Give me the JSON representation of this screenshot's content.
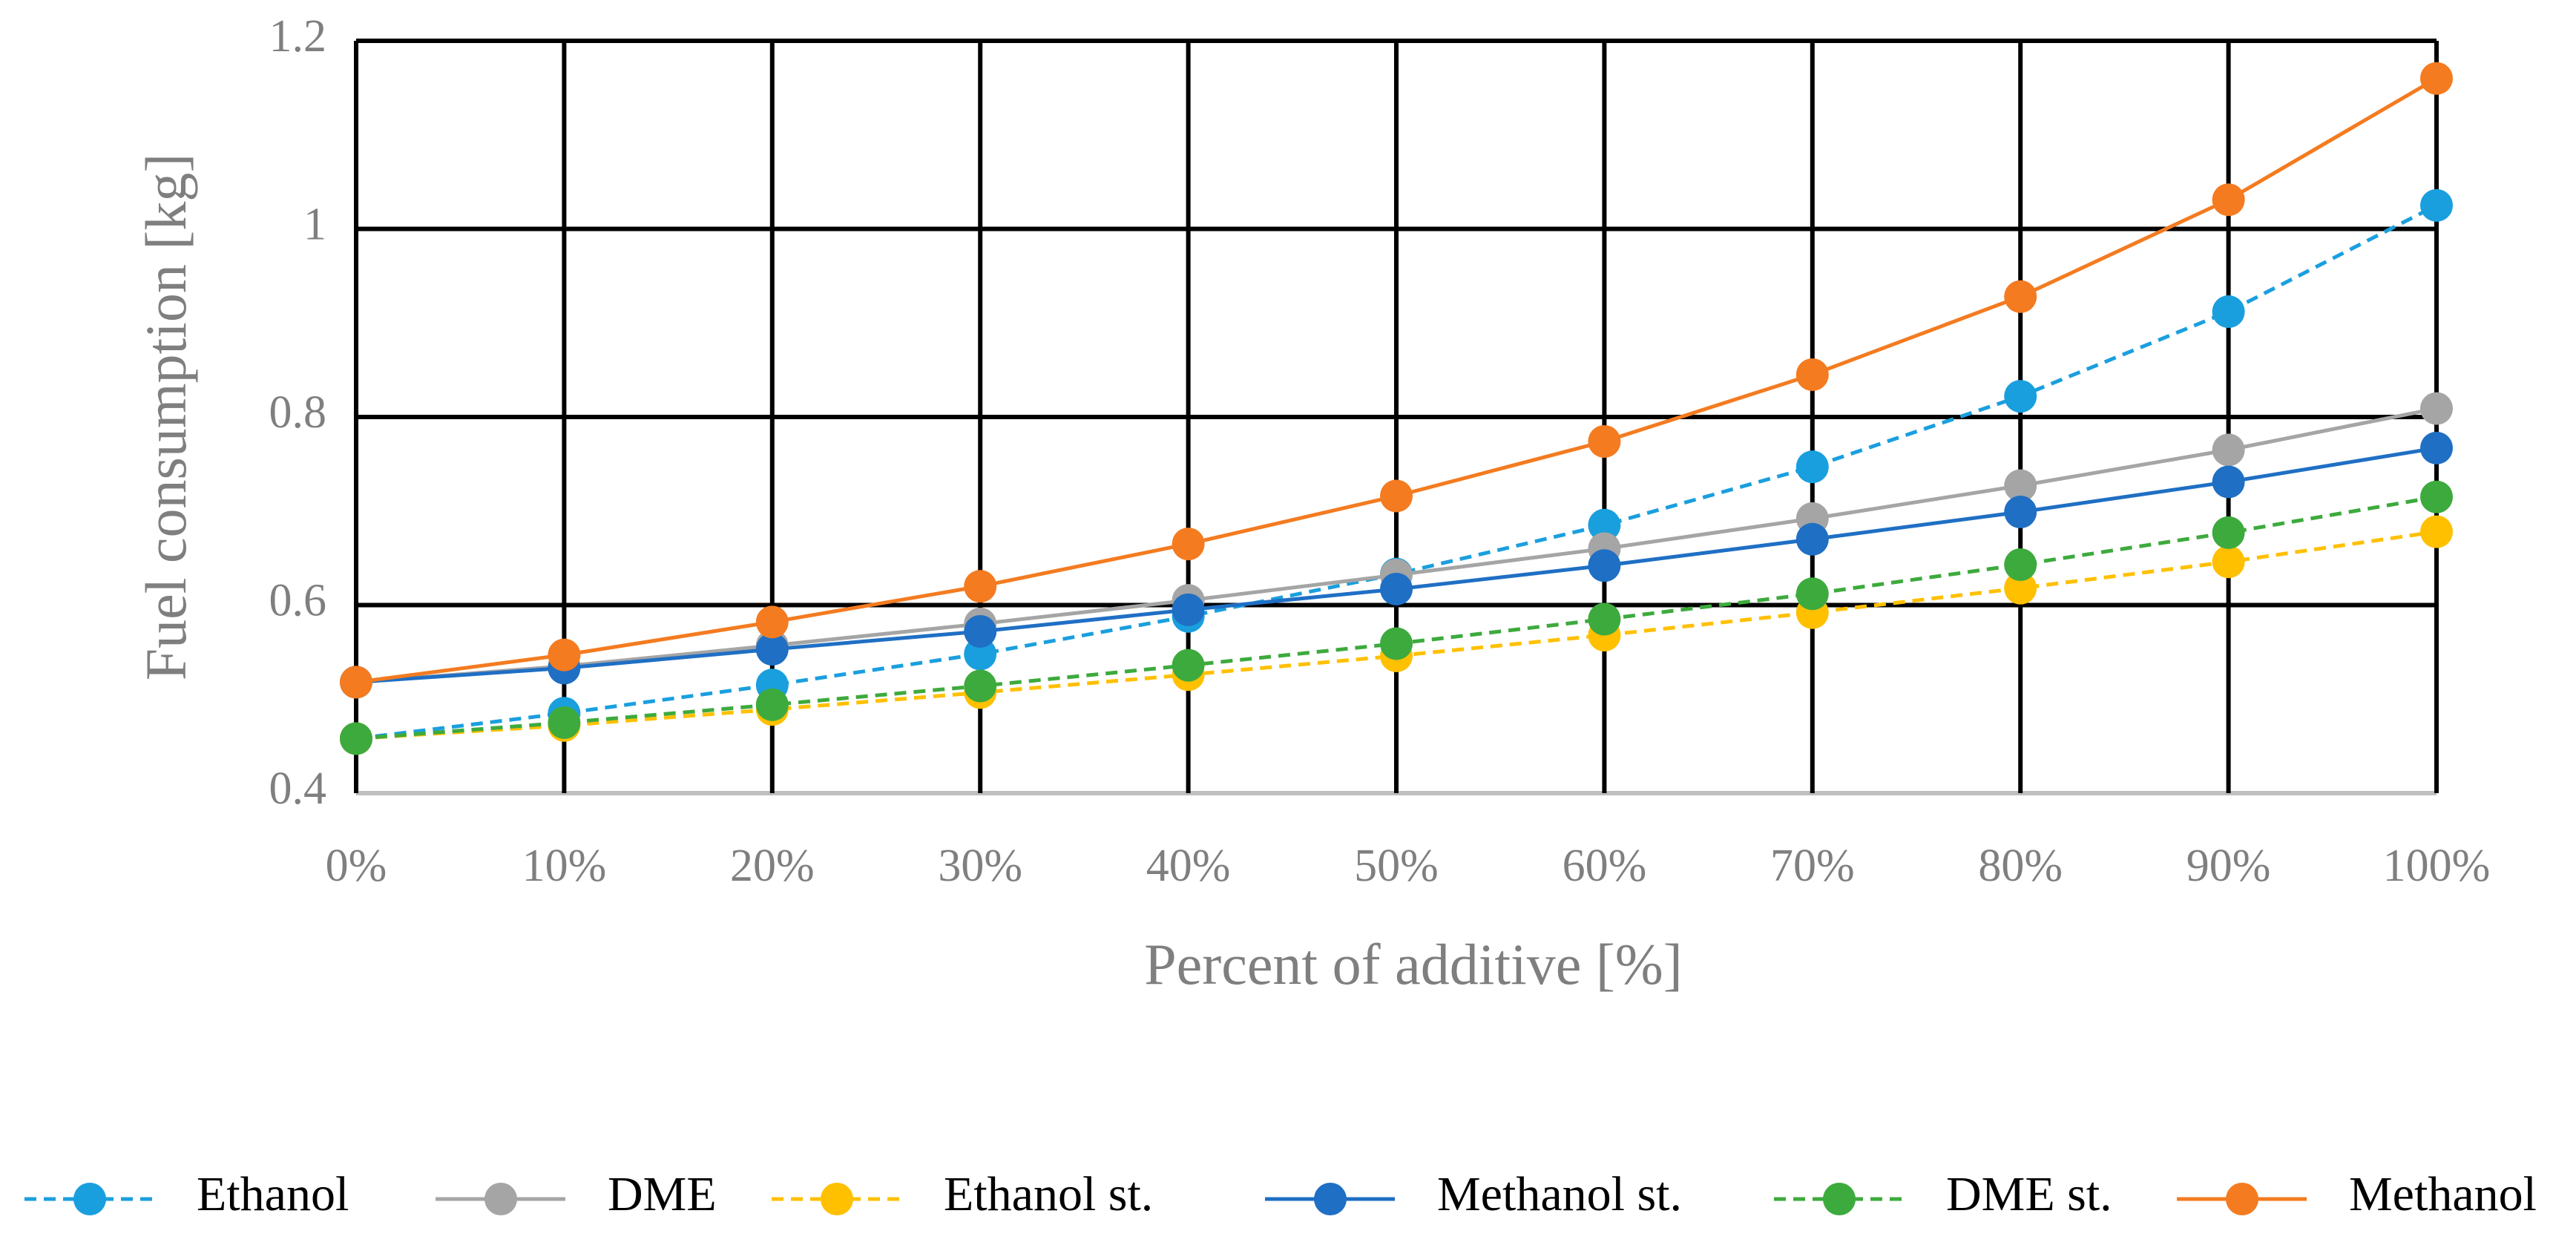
{
  "chart_data": {
    "type": "line",
    "x_label": "Percent of additive [%]",
    "y_label": "Fuel consumption [kg]",
    "categories": [
      "0%",
      "10%",
      "20%",
      "30%",
      "40%",
      "50%",
      "60%",
      "70%",
      "80%",
      "90%",
      "100%"
    ],
    "series": [
      {
        "name": "Ethanol",
        "color": "#1a9fde",
        "dashed": true,
        "values": [
          0.458,
          0.485,
          0.515,
          0.548,
          0.588,
          0.633,
          0.685,
          0.747,
          0.822,
          0.912,
          1.025
        ]
      },
      {
        "name": "DME",
        "color": "#a5a5a5",
        "dashed": false,
        "values": [
          0.518,
          0.535,
          0.557,
          0.58,
          0.605,
          0.632,
          0.66,
          0.692,
          0.727,
          0.765,
          0.809
        ]
      },
      {
        "name": "Ethanol st.",
        "color": "#ffc000",
        "dashed": true,
        "values": [
          0.458,
          0.472,
          0.489,
          0.507,
          0.526,
          0.546,
          0.568,
          0.592,
          0.618,
          0.646,
          0.678
        ]
      },
      {
        "name": "Methanol st.",
        "color": "#1f6fc4",
        "dashed": false,
        "values": [
          0.518,
          0.533,
          0.553,
          0.572,
          0.595,
          0.617,
          0.642,
          0.67,
          0.699,
          0.731,
          0.767
        ]
      },
      {
        "name": "DME st.",
        "color": "#3daa3d",
        "dashed": true,
        "values": [
          0.458,
          0.475,
          0.494,
          0.514,
          0.536,
          0.559,
          0.585,
          0.612,
          0.643,
          0.677,
          0.715
        ]
      },
      {
        "name": "Methanol",
        "color": "#f47b20",
        "dashed": false,
        "values": [
          0.518,
          0.547,
          0.582,
          0.62,
          0.665,
          0.716,
          0.774,
          0.845,
          0.928,
          1.031,
          1.16
        ]
      }
    ],
    "ylim": [
      0.4,
      1.2
    ],
    "yticks": [
      0.4,
      0.6,
      0.8,
      1,
      1.2
    ],
    "grid": true,
    "legend": "bottom"
  }
}
